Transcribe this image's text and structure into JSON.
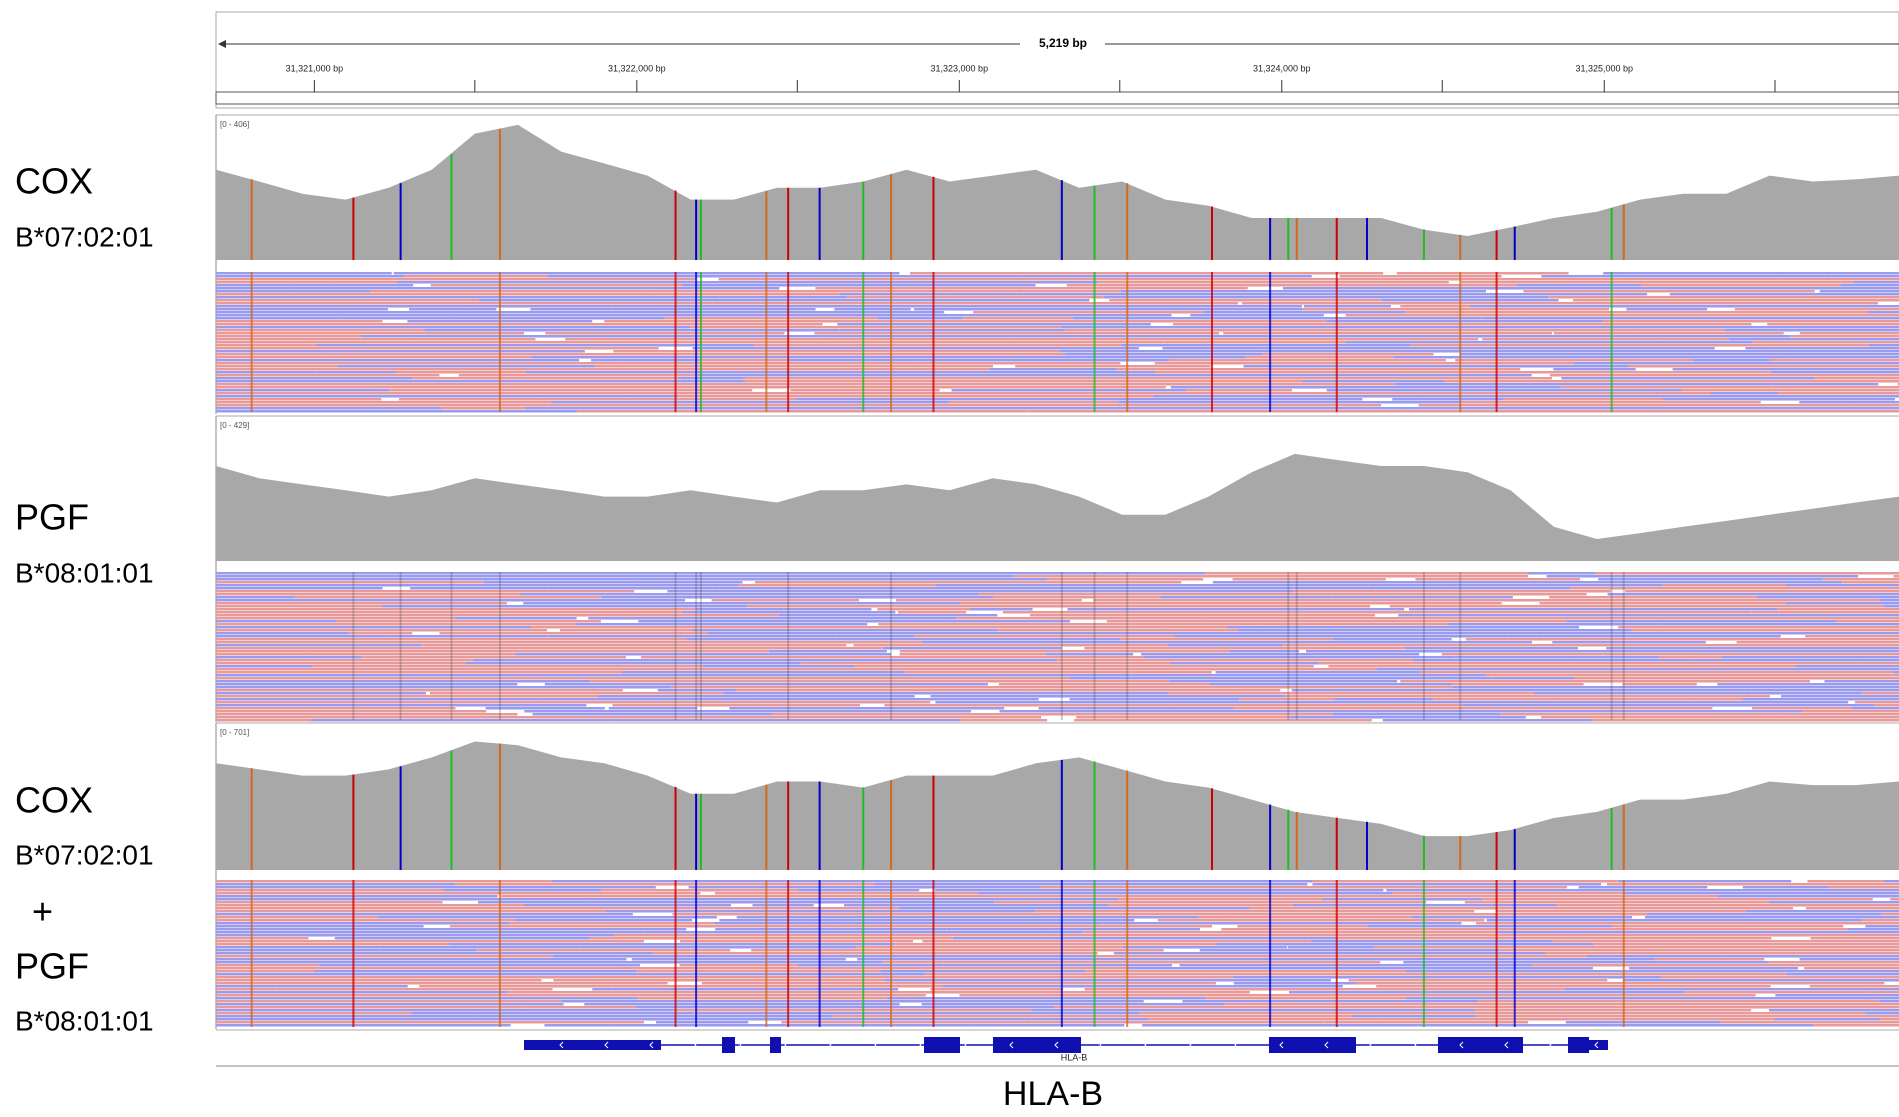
{
  "ruler": {
    "span": {
      "value": 5219,
      "label": "5,219 bp"
    },
    "xlim": [
      31320695,
      31325914
    ],
    "ticks": [
      {
        "value": 31321000,
        "label": "31,321,000 bp"
      },
      {
        "value": 31322000,
        "label": "31,322,000 bp"
      },
      {
        "value": 31323000,
        "label": "31,323,000 bp"
      },
      {
        "value": 31324000,
        "label": "31,324,000 bp"
      },
      {
        "value": 31325000,
        "label": "31,325,000 bp"
      }
    ]
  },
  "tracks": [
    {
      "labels": [
        "COX",
        "B*07:02:01"
      ],
      "range": {
        "value": [
          0,
          406
        ],
        "label": "[0 - 406]"
      },
      "coverage": [
        260,
        226,
        191,
        174,
        208,
        260,
        364,
        389,
        312,
        278,
        243,
        174,
        174,
        208,
        208,
        226,
        260,
        226,
        243,
        260,
        208,
        226,
        174,
        156,
        121,
        121,
        121,
        121,
        87,
        69,
        94,
        121,
        139,
        174,
        191,
        191,
        243,
        226,
        232,
        243
      ]
    },
    {
      "labels": [
        "PGF",
        "B*08:01:01"
      ],
      "range": {
        "value": [
          0,
          429
        ],
        "label": "[0 - 429]"
      },
      "coverage": [
        289,
        252,
        233,
        215,
        196,
        215,
        252,
        233,
        215,
        196,
        196,
        215,
        196,
        178,
        215,
        215,
        233,
        215,
        252,
        233,
        196,
        141,
        141,
        196,
        270,
        326,
        307,
        289,
        289,
        270,
        215,
        104,
        67,
        85,
        104,
        122,
        141,
        159,
        178,
        196
      ]
    },
    {
      "labels": [
        "COX",
        "B*07:02:01",
        "+",
        "PGF",
        "B*08:01:01"
      ],
      "range": {
        "value": [
          0,
          701
        ],
        "label": "[0 - 701]"
      },
      "coverage": [
        523,
        493,
        463,
        463,
        493,
        552,
        630,
        612,
        552,
        523,
        463,
        374,
        374,
        434,
        434,
        404,
        463,
        463,
        463,
        523,
        552,
        493,
        434,
        404,
        345,
        285,
        255,
        226,
        166,
        166,
        196,
        255,
        285,
        345,
        345,
        374,
        434,
        416,
        416,
        434
      ]
    }
  ],
  "gene": {
    "track_label": "HLA-B",
    "name": "HLA-B"
  }
}
